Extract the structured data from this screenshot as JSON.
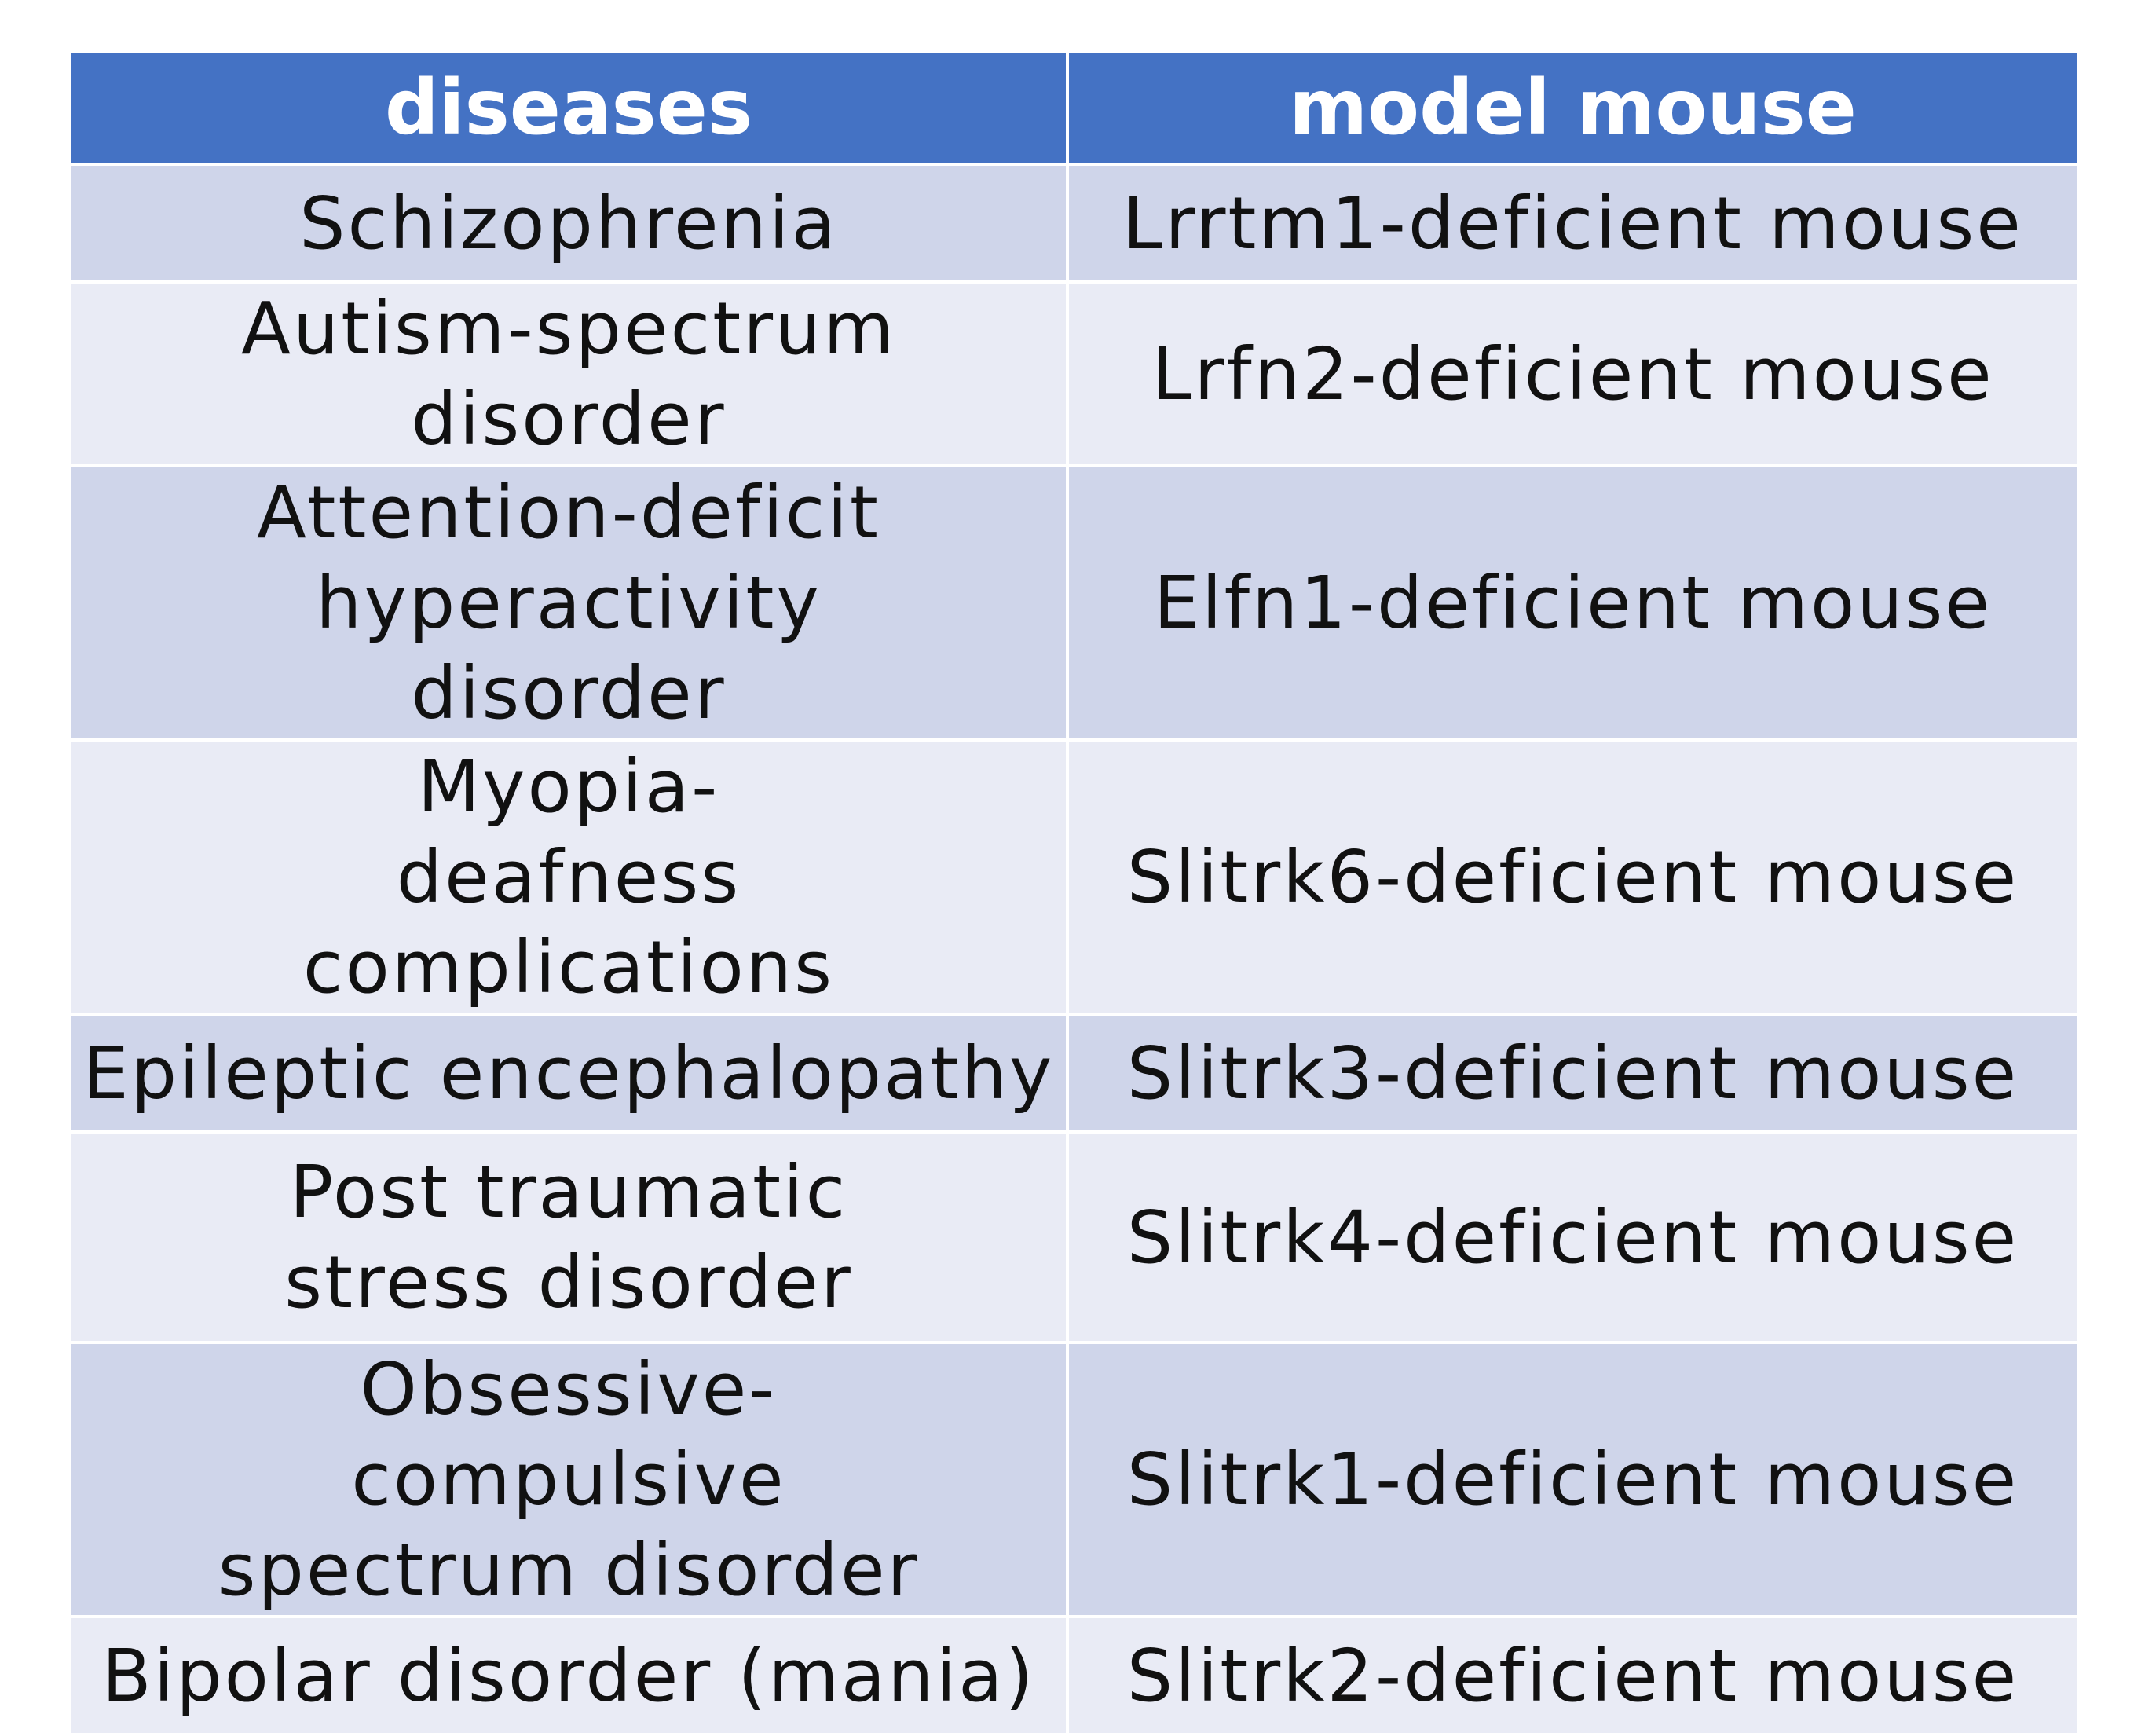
{
  "table": {
    "headers": [
      "diseases",
      "model mouse"
    ],
    "rows": [
      {
        "disease": "Schizophrenia",
        "model": "Lrrtm1-deficient mouse"
      },
      {
        "disease": "Autism-spectrum disorder",
        "model": "Lrfn2-deficient mouse"
      },
      {
        "disease": "Attention-deficit hyperactivity disorder",
        "model": "Elfn1-deficient mouse"
      },
      {
        "disease": "Myopia-deafness complications",
        "model": "Slitrk6-deficient mouse"
      },
      {
        "disease": "Epileptic encephalopathy",
        "model": "Slitrk3-deficient mouse"
      },
      {
        "disease": "Post traumatic stress disorder",
        "model": "Slitrk4-deficient mouse"
      },
      {
        "disease": "Obsessive-compulsive spectrum disorder",
        "model": "Slitrk1-deficient mouse"
      },
      {
        "disease": "Bipolar disorder (mania)",
        "model": "Slitrk2-deficient mouse"
      }
    ]
  },
  "colors": {
    "header_bg": "#4472c4",
    "row_dark": "#cfd5ea",
    "row_light": "#e9ebf5"
  }
}
